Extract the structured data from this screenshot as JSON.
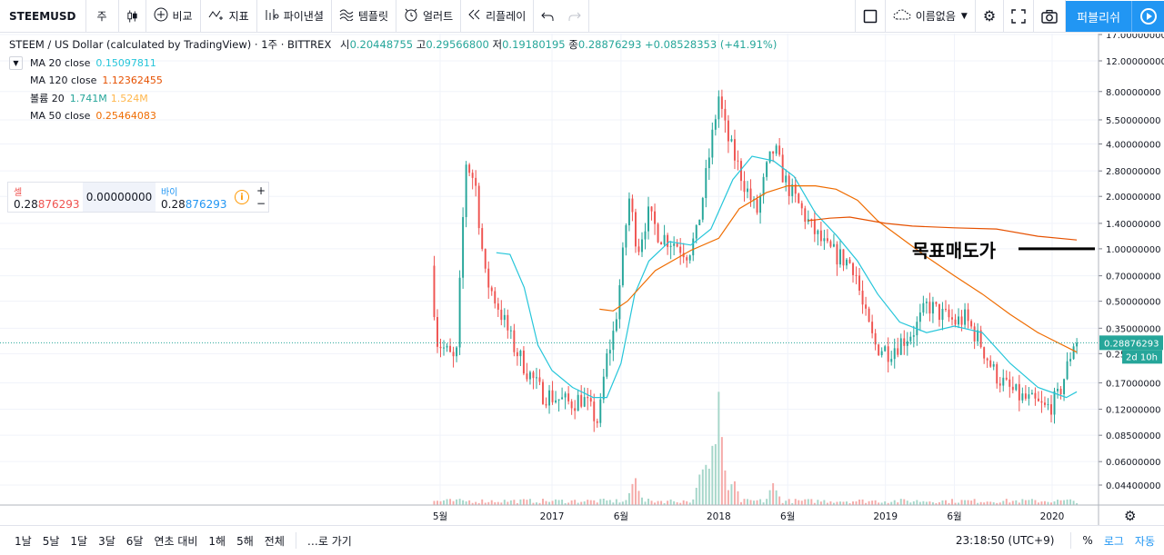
{
  "toolbar": {
    "symbol": "STEEMUSD",
    "interval": "주",
    "candle_icon": "candles-icon",
    "compare_label": "비교",
    "indicators_label": "지표",
    "pine_label": "파이낸셜",
    "templates_label": "템플릿",
    "alert_label": "얼러트",
    "replay_label": "리플레이",
    "layout_name": "이름없음",
    "publish_label": "퍼블리쉬"
  },
  "legend": {
    "title": "STEEM / US Dollar (calculated by TradingView) · 1주 · BITTREX",
    "open_key": "시",
    "open": "0.20448755",
    "high_key": "고",
    "high": "0.29566800",
    "low_key": "저",
    "low": "0.19180195",
    "close_key": "종",
    "close": "0.28876293",
    "change": "+0.08528353 (+41.91%)",
    "indicators": [
      {
        "label": "MA 20 close",
        "value": "0.15097811",
        "color": "#26c6da"
      },
      {
        "label": "MA 120 close",
        "value": "1.12362455",
        "color": "#e65100"
      },
      {
        "label": "볼륨 20",
        "value": "1.741M",
        "value2": "1.524M",
        "color": "#26a69a",
        "color2": "#ffb74d"
      },
      {
        "label": "MA 50 close",
        "value": "0.25464083",
        "color": "#ef6c00"
      }
    ]
  },
  "trade": {
    "sell_label": "셀",
    "sell_price_a": "0.28",
    "sell_price_b": "876293",
    "spread": "0.00000000",
    "buy_label": "바이",
    "buy_price_a": "0.28",
    "buy_price_b": "876293",
    "info": "i",
    "plus": "+",
    "minus": "−"
  },
  "annotation": {
    "text": "목표매도가"
  },
  "price_scale": {
    "current_price": "0.28876293",
    "countdown": "2d 10h"
  },
  "bottom": {
    "ranges": [
      "1날",
      "5날",
      "1달",
      "3달",
      "6달",
      "연초 대비",
      "1해",
      "5해",
      "전체"
    ],
    "goto": "…로 가기",
    "clock": "23:18:50 (UTC+9)",
    "percent": "%",
    "log": "로그",
    "auto": "자동"
  },
  "chart_data": {
    "type": "candlestick",
    "scale": "log",
    "y_ticks": [
      "17.00000000",
      "12.00000000",
      "8.00000000",
      "5.50000000",
      "4.00000000",
      "2.80000000",
      "2.00000000",
      "1.40000000",
      "1.00000000",
      "0.70000000",
      "0.50000000",
      "0.35000000",
      "0.25",
      "0.17000000",
      "0.12000000",
      "0.08500000",
      "0.06000000",
      "0.04400000"
    ],
    "y_tick_values": [
      17,
      12,
      8,
      5.5,
      4,
      2.8,
      2,
      1.4,
      1,
      0.7,
      0.5,
      0.35,
      0.25,
      0.17,
      0.12,
      0.085,
      0.06,
      0.044
    ],
    "x_ticks": [
      "5월",
      "2017",
      "6월",
      "2018",
      "6월",
      "2019",
      "6월",
      "2020"
    ],
    "x_tick_dates": [
      "2016-05-01",
      "2017-01-01",
      "2017-06-01",
      "2018-01-01",
      "2018-06-01",
      "2019-01-01",
      "2019-06-01",
      "2020-01-01"
    ],
    "close_price_line": 0.28876293,
    "target_sell_price": 1.0,
    "price_path": [
      [
        "2016-04-18",
        0.8
      ],
      [
        "2016-05-01",
        0.3
      ],
      [
        "2016-05-20",
        0.26
      ],
      [
        "2016-06-12",
        0.22
      ],
      [
        "2016-07-03",
        3.2
      ],
      [
        "2016-07-24",
        2.4
      ],
      [
        "2016-08-14",
        0.7
      ],
      [
        "2016-09-15",
        0.45
      ],
      [
        "2016-10-15",
        0.28
      ],
      [
        "2016-11-15",
        0.2
      ],
      [
        "2016-12-15",
        0.15
      ],
      [
        "2017-01-15",
        0.14
      ],
      [
        "2017-02-15",
        0.13
      ],
      [
        "2017-03-15",
        0.14
      ],
      [
        "2017-04-01",
        0.12
      ],
      [
        "2017-04-20",
        0.1
      ],
      [
        "2017-05-05",
        0.22
      ],
      [
        "2017-05-25",
        0.35
      ],
      [
        "2017-06-10",
        0.8
      ],
      [
        "2017-06-25",
        2.0
      ],
      [
        "2017-07-15",
        1.0
      ],
      [
        "2017-08-05",
        1.6
      ],
      [
        "2017-09-01",
        1.2
      ],
      [
        "2017-10-01",
        1.1
      ],
      [
        "2017-11-01",
        0.95
      ],
      [
        "2017-11-20",
        1.2
      ],
      [
        "2017-12-10",
        2.5
      ],
      [
        "2017-12-28",
        5.0
      ],
      [
        "2018-01-08",
        7.5
      ],
      [
        "2018-01-25",
        4.5
      ],
      [
        "2018-02-15",
        3.2
      ],
      [
        "2018-03-10",
        2.2
      ],
      [
        "2018-04-01",
        1.6
      ],
      [
        "2018-04-25",
        3.0
      ],
      [
        "2018-05-10",
        3.8
      ],
      [
        "2018-06-01",
        2.5
      ],
      [
        "2018-07-01",
        1.8
      ],
      [
        "2018-08-01",
        1.3
      ],
      [
        "2018-09-01",
        1.0
      ],
      [
        "2018-10-01",
        0.9
      ],
      [
        "2018-11-01",
        0.8
      ],
      [
        "2018-11-20",
        0.45
      ],
      [
        "2018-12-15",
        0.28
      ],
      [
        "2019-01-15",
        0.26
      ],
      [
        "2019-02-15",
        0.3
      ],
      [
        "2019-03-15",
        0.35
      ],
      [
        "2019-04-10",
        0.48
      ],
      [
        "2019-05-10",
        0.42
      ],
      [
        "2019-06-10",
        0.38
      ],
      [
        "2019-07-01",
        0.4
      ],
      [
        "2019-08-01",
        0.3
      ],
      [
        "2019-09-01",
        0.2
      ],
      [
        "2019-10-01",
        0.16
      ],
      [
        "2019-11-01",
        0.14
      ],
      [
        "2019-12-01",
        0.13
      ],
      [
        "2019-12-25",
        0.12
      ],
      [
        "2020-01-20",
        0.14
      ],
      [
        "2020-02-08",
        0.2
      ],
      [
        "2020-02-24",
        0.29
      ]
    ],
    "ma20_path": [
      [
        "2016-09-01",
        0.95
      ],
      [
        "2016-10-01",
        0.93
      ],
      [
        "2016-11-01",
        0.6
      ],
      [
        "2016-12-01",
        0.28
      ],
      [
        "2017-01-01",
        0.2
      ],
      [
        "2017-02-15",
        0.16
      ],
      [
        "2017-04-01",
        0.14
      ],
      [
        "2017-05-01",
        0.14
      ],
      [
        "2017-06-01",
        0.22
      ],
      [
        "2017-07-01",
        0.55
      ],
      [
        "2017-08-01",
        0.85
      ],
      [
        "2017-09-15",
        1.1
      ],
      [
        "2017-11-01",
        1.05
      ],
      [
        "2017-12-15",
        1.3
      ],
      [
        "2018-02-01",
        2.5
      ],
      [
        "2018-03-15",
        3.4
      ],
      [
        "2018-05-01",
        3.2
      ],
      [
        "2018-06-15",
        2.6
      ],
      [
        "2018-08-01",
        1.6
      ],
      [
        "2018-09-15",
        1.2
      ],
      [
        "2018-11-01",
        0.85
      ],
      [
        "2018-12-15",
        0.55
      ],
      [
        "2019-02-01",
        0.38
      ],
      [
        "2019-04-01",
        0.33
      ],
      [
        "2019-06-01",
        0.36
      ],
      [
        "2019-08-01",
        0.33
      ],
      [
        "2019-10-01",
        0.22
      ],
      [
        "2019-12-01",
        0.16
      ],
      [
        "2020-02-01",
        0.14
      ],
      [
        "2020-02-24",
        0.151
      ]
    ],
    "ma50_path": [
      [
        "2017-04-15",
        0.45
      ],
      [
        "2017-05-15",
        0.44
      ],
      [
        "2017-06-15",
        0.5
      ],
      [
        "2017-08-15",
        0.75
      ],
      [
        "2017-11-01",
        0.98
      ],
      [
        "2018-01-01",
        1.15
      ],
      [
        "2018-02-15",
        1.7
      ],
      [
        "2018-04-15",
        2.1
      ],
      [
        "2018-06-01",
        2.3
      ],
      [
        "2018-08-01",
        2.3
      ],
      [
        "2018-09-15",
        2.2
      ],
      [
        "2018-11-01",
        1.9
      ],
      [
        "2018-12-15",
        1.45
      ],
      [
        "2019-02-15",
        1.1
      ],
      [
        "2019-04-01",
        0.9
      ],
      [
        "2019-06-01",
        0.7
      ],
      [
        "2019-08-01",
        0.55
      ],
      [
        "2019-10-01",
        0.42
      ],
      [
        "2019-12-01",
        0.33
      ],
      [
        "2020-02-24",
        0.255
      ]
    ],
    "ma120_path": [
      [
        "2018-07-15",
        1.45
      ],
      [
        "2018-09-01",
        1.5
      ],
      [
        "2018-10-15",
        1.52
      ],
      [
        "2019-01-01",
        1.4
      ],
      [
        "2019-03-01",
        1.35
      ],
      [
        "2019-06-01",
        1.32
      ],
      [
        "2019-09-01",
        1.3
      ],
      [
        "2019-12-01",
        1.18
      ],
      [
        "2020-02-24",
        1.124
      ]
    ],
    "volume_highlights": [
      [
        "2018-01-01",
        1.0
      ],
      [
        "2017-12-18",
        0.62
      ],
      [
        "2017-12-08",
        0.5
      ],
      [
        "2017-11-25",
        0.35
      ],
      [
        "2017-07-01",
        0.28
      ],
      [
        "2018-02-01",
        0.25
      ],
      [
        "2018-05-01",
        0.22
      ]
    ]
  }
}
